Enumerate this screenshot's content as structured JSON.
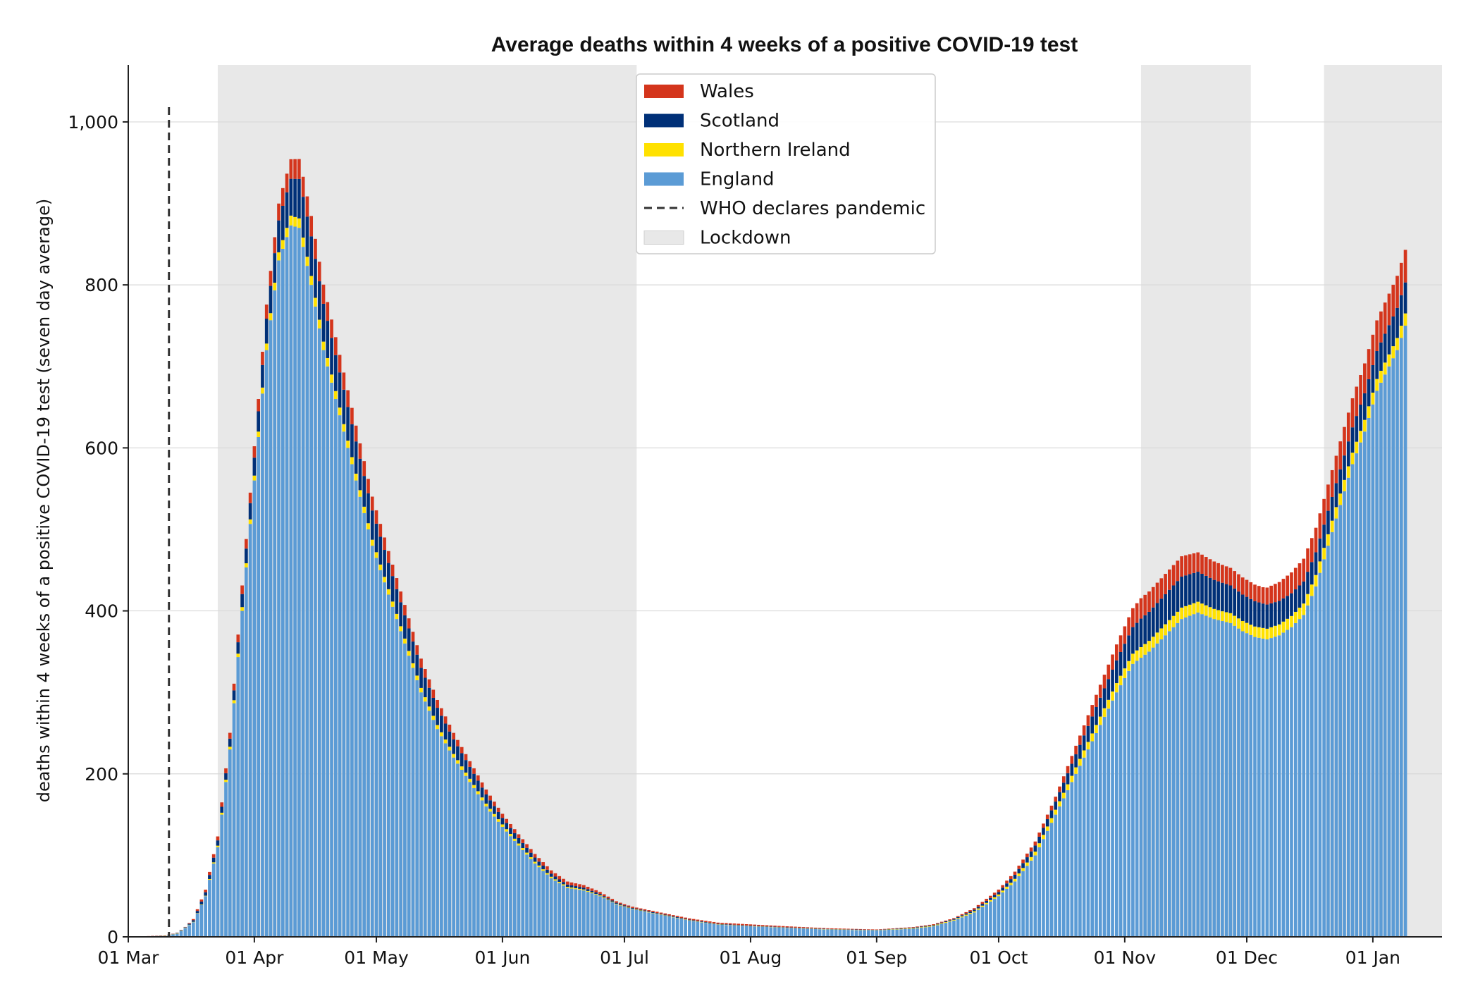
{
  "chart_data": {
    "type": "bar",
    "stacked": true,
    "title": "Average deaths within 4 weeks of a positive COVID-19 test",
    "xlabel": "",
    "ylabel": "deaths within 4 weeks of a positive COVID-19 test (seven day average)",
    "x_start": "2020-03-01",
    "x_end": "2021-01-09",
    "xlim": [
      "2020-03-01",
      "2021-01-18"
    ],
    "ylim": [
      0,
      1070
    ],
    "y_ticks": [
      0,
      200,
      400,
      600,
      800,
      1000
    ],
    "y_tick_labels": [
      "0",
      "200",
      "400",
      "600",
      "800",
      "1,000"
    ],
    "x_tick_dates": [
      "2020-03-01",
      "2020-04-01",
      "2020-05-01",
      "2020-06-01",
      "2020-07-01",
      "2020-08-01",
      "2020-09-01",
      "2020-10-01",
      "2020-11-01",
      "2020-12-01",
      "2021-01-01"
    ],
    "x_tick_labels": [
      "01 Mar",
      "01 Apr",
      "01 May",
      "01 Jun",
      "01 Jul",
      "01 Aug",
      "01 Sep",
      "01 Oct",
      "01 Nov",
      "01 Dec",
      "01 Jan"
    ],
    "grid": "horizontal",
    "legend_position": "top-center",
    "series": [
      {
        "name": "England",
        "color": "#5b9bd5",
        "anchors": [
          [
            "2020-03-01",
            0
          ],
          [
            "2020-03-10",
            1
          ],
          [
            "2020-03-13",
            4
          ],
          [
            "2020-03-17",
            18
          ],
          [
            "2020-03-20",
            50
          ],
          [
            "2020-03-23",
            110
          ],
          [
            "2020-03-26",
            230
          ],
          [
            "2020-03-29",
            400
          ],
          [
            "2020-04-01",
            560
          ],
          [
            "2020-04-04",
            720
          ],
          [
            "2020-04-07",
            830
          ],
          [
            "2020-04-10",
            873
          ],
          [
            "2020-04-12",
            870
          ],
          [
            "2020-04-15",
            800
          ],
          [
            "2020-04-18",
            720
          ],
          [
            "2020-04-21",
            660
          ],
          [
            "2020-04-24",
            600
          ],
          [
            "2020-04-27",
            540
          ],
          [
            "2020-04-30",
            480
          ],
          [
            "2020-05-04",
            420
          ],
          [
            "2020-05-08",
            360
          ],
          [
            "2020-05-12",
            300
          ],
          [
            "2020-05-16",
            255
          ],
          [
            "2020-05-20",
            220
          ],
          [
            "2020-05-24",
            190
          ],
          [
            "2020-05-28",
            160
          ],
          [
            "2020-06-01",
            135
          ],
          [
            "2020-06-05",
            112
          ],
          [
            "2020-06-09",
            90
          ],
          [
            "2020-06-13",
            72
          ],
          [
            "2020-06-17",
            60
          ],
          [
            "2020-06-21",
            57
          ],
          [
            "2020-06-25",
            50
          ],
          [
            "2020-06-29",
            40
          ],
          [
            "2020-07-03",
            34
          ],
          [
            "2020-07-10",
            27
          ],
          [
            "2020-07-17",
            20
          ],
          [
            "2020-07-24",
            15
          ],
          [
            "2020-08-01",
            13
          ],
          [
            "2020-08-10",
            11
          ],
          [
            "2020-08-20",
            9
          ],
          [
            "2020-09-01",
            8
          ],
          [
            "2020-09-10",
            10
          ],
          [
            "2020-09-15",
            13
          ],
          [
            "2020-09-20",
            20
          ],
          [
            "2020-09-25",
            30
          ],
          [
            "2020-10-01",
            50
          ],
          [
            "2020-10-05",
            68
          ],
          [
            "2020-10-10",
            100
          ],
          [
            "2020-10-15",
            150
          ],
          [
            "2020-10-20",
            200
          ],
          [
            "2020-10-25",
            250
          ],
          [
            "2020-10-30",
            300
          ],
          [
            "2020-11-03",
            335
          ],
          [
            "2020-11-07",
            350
          ],
          [
            "2020-11-11",
            370
          ],
          [
            "2020-11-15",
            390
          ],
          [
            "2020-11-19",
            398
          ],
          [
            "2020-11-23",
            390
          ],
          [
            "2020-11-27",
            385
          ],
          [
            "2020-11-30",
            375
          ],
          [
            "2020-12-03",
            368
          ],
          [
            "2020-12-06",
            365
          ],
          [
            "2020-12-09",
            370
          ],
          [
            "2020-12-12",
            380
          ],
          [
            "2020-12-15",
            395
          ],
          [
            "2020-12-18",
            430
          ],
          [
            "2020-12-21",
            480
          ],
          [
            "2020-12-24",
            530
          ],
          [
            "2020-12-27",
            580
          ],
          [
            "2020-12-30",
            620
          ],
          [
            "2021-01-02",
            670
          ],
          [
            "2021-01-05",
            700
          ],
          [
            "2021-01-07",
            720
          ],
          [
            "2021-01-09",
            750
          ]
        ]
      },
      {
        "name": "Northern Ireland",
        "color": "#ffe100",
        "anchors": [
          [
            "2020-03-01",
            0
          ],
          [
            "2020-03-20",
            0.5
          ],
          [
            "2020-04-01",
            6
          ],
          [
            "2020-04-10",
            12
          ],
          [
            "2020-04-20",
            10
          ],
          [
            "2020-05-01",
            7
          ],
          [
            "2020-05-15",
            5
          ],
          [
            "2020-06-01",
            3
          ],
          [
            "2020-06-15",
            1.5
          ],
          [
            "2020-07-01",
            0.5
          ],
          [
            "2020-08-01",
            0.3
          ],
          [
            "2020-09-01",
            0.3
          ],
          [
            "2020-09-20",
            1
          ],
          [
            "2020-10-01",
            2
          ],
          [
            "2020-10-15",
            6
          ],
          [
            "2020-10-25",
            10
          ],
          [
            "2020-11-05",
            13
          ],
          [
            "2020-11-15",
            14
          ],
          [
            "2020-11-25",
            12
          ],
          [
            "2020-12-05",
            13
          ],
          [
            "2020-12-15",
            14
          ],
          [
            "2020-12-25",
            14
          ],
          [
            "2021-01-09",
            15
          ]
        ]
      },
      {
        "name": "Scotland",
        "color": "#003078",
        "anchors": [
          [
            "2020-03-01",
            0
          ],
          [
            "2020-03-15",
            0.5
          ],
          [
            "2020-03-25",
            8
          ],
          [
            "2020-04-01",
            22
          ],
          [
            "2020-04-08",
            42
          ],
          [
            "2020-04-13",
            50
          ],
          [
            "2020-04-20",
            45
          ],
          [
            "2020-05-01",
            35
          ],
          [
            "2020-05-15",
            22
          ],
          [
            "2020-06-01",
            8
          ],
          [
            "2020-06-15",
            3
          ],
          [
            "2020-07-01",
            1
          ],
          [
            "2020-08-01",
            0.5
          ],
          [
            "2020-09-01",
            0.3
          ],
          [
            "2020-09-20",
            1
          ],
          [
            "2020-10-01",
            3
          ],
          [
            "2020-10-15",
            10
          ],
          [
            "2020-10-25",
            22
          ],
          [
            "2020-11-05",
            35
          ],
          [
            "2020-11-15",
            38
          ],
          [
            "2020-11-25",
            35
          ],
          [
            "2020-12-05",
            30
          ],
          [
            "2020-12-15",
            27
          ],
          [
            "2020-12-25",
            30
          ],
          [
            "2021-01-09",
            38
          ]
        ]
      },
      {
        "name": "Wales",
        "color": "#d4351c",
        "anchors": [
          [
            "2020-03-01",
            0
          ],
          [
            "2020-03-15",
            0.3
          ],
          [
            "2020-03-25",
            6
          ],
          [
            "2020-04-01",
            14
          ],
          [
            "2020-04-10",
            24
          ],
          [
            "2020-04-15",
            25
          ],
          [
            "2020-04-25",
            20
          ],
          [
            "2020-05-05",
            14
          ],
          [
            "2020-05-20",
            8
          ],
          [
            "2020-06-01",
            5
          ],
          [
            "2020-06-15",
            4
          ],
          [
            "2020-06-22",
            3
          ],
          [
            "2020-07-01",
            1.5
          ],
          [
            "2020-08-01",
            1.5
          ],
          [
            "2020-09-01",
            0.5
          ],
          [
            "2020-09-20",
            1
          ],
          [
            "2020-10-01",
            3
          ],
          [
            "2020-10-15",
            6
          ],
          [
            "2020-10-25",
            15
          ],
          [
            "2020-11-05",
            25
          ],
          [
            "2020-11-15",
            25
          ],
          [
            "2020-11-25",
            22
          ],
          [
            "2020-12-05",
            20
          ],
          [
            "2020-12-15",
            28
          ],
          [
            "2020-12-25",
            35
          ],
          [
            "2021-01-09",
            40
          ]
        ]
      }
    ],
    "annotations": {
      "pandemic_line": {
        "date": "2020-03-11",
        "label": "WHO declares pandemic",
        "style": "dashed",
        "color": "#333333"
      },
      "lockdowns": [
        {
          "start": "2020-03-23",
          "end": "2020-07-04"
        },
        {
          "start": "2020-11-05",
          "end": "2020-12-02"
        },
        {
          "start": "2020-12-20",
          "end": "2021-01-18"
        }
      ],
      "lockdown_label": "Lockdown",
      "lockdown_color": "#e8e8e8"
    },
    "legend": [
      {
        "label": "Wales",
        "color": "#d4351c",
        "kind": "patch"
      },
      {
        "label": "Scotland",
        "color": "#003078",
        "kind": "patch"
      },
      {
        "label": "Northern Ireland",
        "color": "#ffe100",
        "kind": "patch"
      },
      {
        "label": "England",
        "color": "#5b9bd5",
        "kind": "patch"
      },
      {
        "label": "WHO declares pandemic",
        "color": "#333333",
        "kind": "dashed-line"
      },
      {
        "label": "Lockdown",
        "color": "#e8e8e8",
        "kind": "patch"
      }
    ]
  }
}
